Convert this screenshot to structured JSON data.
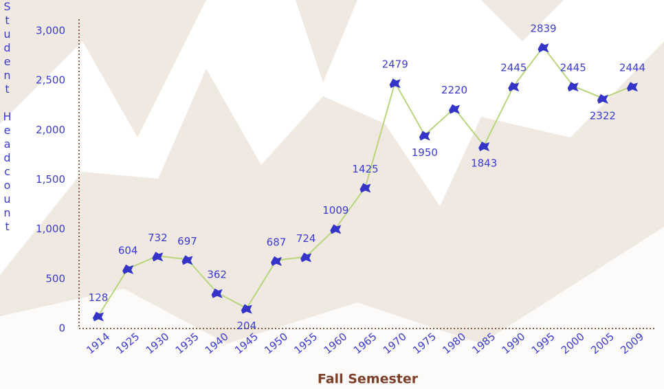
{
  "chart_data": {
    "type": "line",
    "y_label": "Student Headcount",
    "x_label": "Fall Semester",
    "categories": [
      "1914",
      "1925",
      "1930",
      "1935",
      "1940",
      "1945",
      "1950",
      "1955",
      "1960",
      "1965",
      "1970",
      "1975",
      "1980",
      "1985",
      "1990",
      "1995",
      "2000",
      "2005",
      "2009"
    ],
    "values": [
      128,
      604,
      732,
      697,
      362,
      204,
      687,
      724,
      1009,
      1425,
      2479,
      1950,
      2220,
      1843,
      2445,
      2839,
      2445,
      2322,
      2444
    ],
    "line_color": "#b9d57c",
    "marker_color": "#3434c8",
    "ylim": [
      0,
      3000
    ],
    "yticks": [
      0,
      500,
      {
        "value": 1000,
        "label": "1,000"
      },
      {
        "value": 1500,
        "label": "1,500"
      },
      {
        "value": 2000,
        "label": "2,000"
      },
      {
        "value": 2500,
        "label": "2,500"
      },
      {
        "value": 3000,
        "label": "3,000"
      }
    ]
  }
}
